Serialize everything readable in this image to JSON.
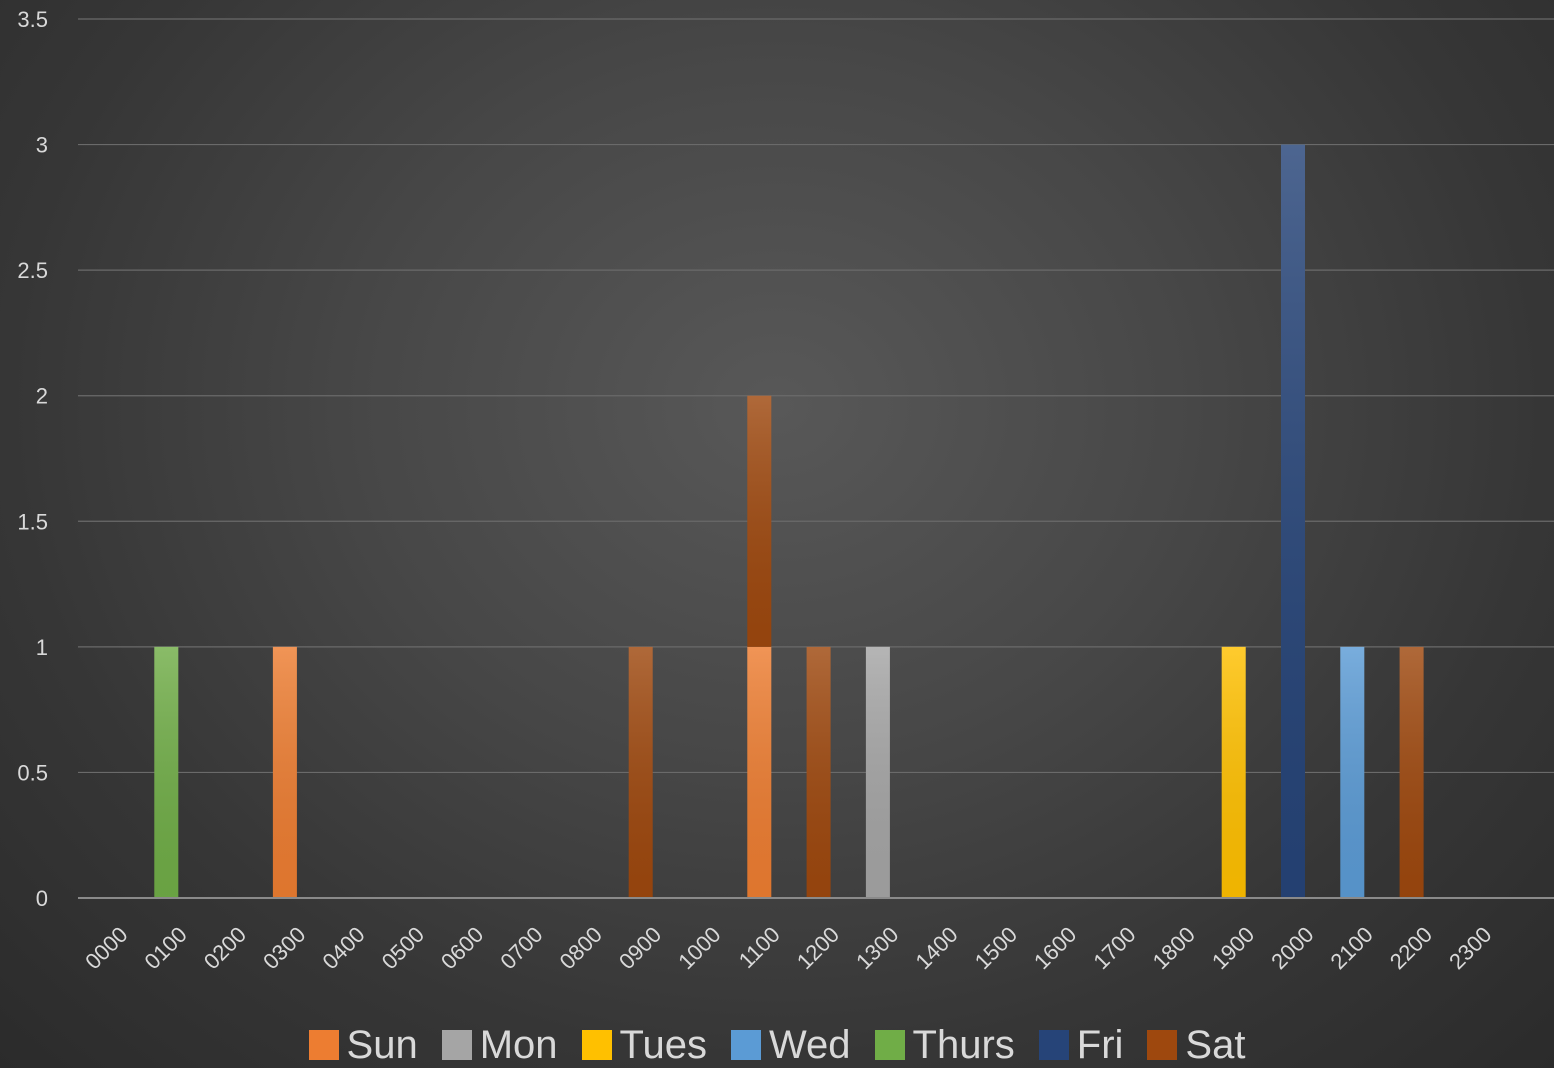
{
  "chart_data": {
    "type": "bar",
    "title": "",
    "xlabel": "",
    "ylabel": "",
    "ylim": [
      0,
      3.5
    ],
    "yticks": [
      0,
      0.5,
      1,
      1.5,
      2,
      2.5,
      3,
      3.5
    ],
    "ytick_labels": [
      "0",
      "0.5",
      "1",
      "1.5",
      "2",
      "2.5",
      "3",
      "3.5"
    ],
    "grid": true,
    "legend_position": "bottom",
    "stacked": true,
    "categories": [
      "0000",
      "0100",
      "0200",
      "0300",
      "0400",
      "0500",
      "0600",
      "0700",
      "0800",
      "0900",
      "1000",
      "1100",
      "1200",
      "1300",
      "1400",
      "1500",
      "1600",
      "1700",
      "1800",
      "1900",
      "2000",
      "2100",
      "2200",
      "2300"
    ],
    "series": [
      {
        "name": "Sun",
        "color": "#ed7d31",
        "values": [
          0,
          0,
          0,
          1,
          0,
          0,
          0,
          0,
          0,
          0,
          0,
          1,
          0,
          0,
          0,
          0,
          0,
          0,
          0,
          0,
          0,
          0,
          0,
          0
        ]
      },
      {
        "name": "Mon",
        "color": "#a5a5a5",
        "values": [
          0,
          0,
          0,
          0,
          0,
          0,
          0,
          0,
          0,
          0,
          0,
          0,
          0,
          1,
          0,
          0,
          0,
          0,
          0,
          0,
          0,
          0,
          0,
          0
        ]
      },
      {
        "name": "Tues",
        "color": "#ffc000",
        "values": [
          0,
          0,
          0,
          0,
          0,
          0,
          0,
          0,
          0,
          0,
          0,
          0,
          0,
          0,
          0,
          0,
          0,
          0,
          0,
          1,
          0,
          0,
          0,
          0
        ]
      },
      {
        "name": "Wed",
        "color": "#5b9bd5",
        "values": [
          0,
          0,
          0,
          0,
          0,
          0,
          0,
          0,
          0,
          0,
          0,
          0,
          0,
          0,
          0,
          0,
          0,
          0,
          0,
          0,
          0,
          1,
          0,
          0
        ]
      },
      {
        "name": "Thurs",
        "color": "#70ad47",
        "values": [
          0,
          1,
          0,
          0,
          0,
          0,
          0,
          0,
          0,
          0,
          0,
          0,
          0,
          0,
          0,
          0,
          0,
          0,
          0,
          0,
          0,
          0,
          0,
          0
        ]
      },
      {
        "name": "Fri",
        "color": "#264478",
        "values": [
          0,
          0,
          0,
          0,
          0,
          0,
          0,
          0,
          0,
          0,
          0,
          0,
          0,
          0,
          0,
          0,
          0,
          0,
          0,
          0,
          3,
          0,
          0,
          0
        ]
      },
      {
        "name": "Sat",
        "color": "#9e480e",
        "values": [
          0,
          0,
          0,
          0,
          0,
          0,
          0,
          0,
          0,
          1,
          0,
          1,
          1,
          0,
          0,
          0,
          0,
          0,
          0,
          0,
          0,
          0,
          1,
          0
        ]
      }
    ]
  }
}
